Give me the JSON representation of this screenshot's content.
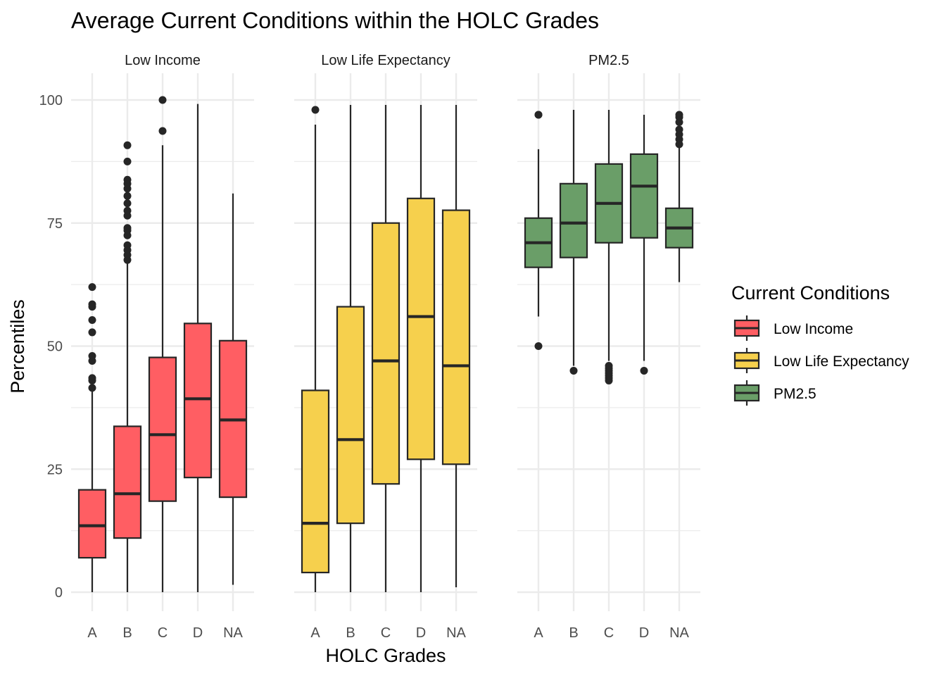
{
  "chart_data": {
    "type": "boxplot",
    "title": "Average Current Conditions within the HOLC Grades",
    "xlabel": "HOLC Grades",
    "ylabel": "Percentiles",
    "ylim": [
      -4,
      104
    ],
    "yticks": [
      0,
      25,
      50,
      75,
      100
    ],
    "categories": [
      "A",
      "B",
      "C",
      "D",
      "NA"
    ],
    "grid": true,
    "legend": {
      "title": "Current Conditions",
      "placement": "right",
      "entries": [
        "Low Income",
        "Low Life Expectancy",
        "PM2.5"
      ]
    },
    "panels": [
      {
        "name": "Low Income",
        "color": "#ff5e63",
        "boxes": [
          {
            "category": "A",
            "min": 0,
            "q1": 7,
            "median": 13.5,
            "q3": 20.8,
            "max": 41,
            "outliers": [
              41.5,
              43,
              43.5,
              47,
              48,
              52.8,
              55.3,
              58,
              58.5,
              62
            ]
          },
          {
            "category": "B",
            "min": 0,
            "q1": 11,
            "median": 20,
            "q3": 33.7,
            "max": 67,
            "outliers": [
              67.5,
              68.5,
              69.5,
              70.5,
              72.5,
              73.5,
              74,
              76.5,
              77.5,
              79,
              80.5,
              82,
              83,
              83.8,
              87.5,
              90.8
            ]
          },
          {
            "category": "C",
            "min": 0,
            "q1": 18.5,
            "median": 32,
            "q3": 47.7,
            "max": 90.8,
            "outliers": [
              93.7,
              100
            ]
          },
          {
            "category": "D",
            "min": 0,
            "q1": 23.3,
            "median": 39.3,
            "q3": 54.6,
            "max": 99.2,
            "outliers": []
          },
          {
            "category": "NA",
            "min": 1.5,
            "q1": 19.3,
            "median": 35,
            "q3": 51.1,
            "max": 81,
            "outliers": []
          }
        ]
      },
      {
        "name": "Low Life Expectancy",
        "color": "#f6d04d",
        "boxes": [
          {
            "category": "A",
            "min": 0,
            "q1": 4,
            "median": 14,
            "q3": 41,
            "max": 95,
            "outliers": [
              98
            ]
          },
          {
            "category": "B",
            "min": 0,
            "q1": 14,
            "median": 31,
            "q3": 58,
            "max": 99,
            "outliers": []
          },
          {
            "category": "C",
            "min": 0,
            "q1": 22,
            "median": 47,
            "q3": 75,
            "max": 99,
            "outliers": []
          },
          {
            "category": "D",
            "min": 0,
            "q1": 27,
            "median": 56,
            "q3": 80,
            "max": 99,
            "outliers": []
          },
          {
            "category": "NA",
            "min": 1,
            "q1": 26,
            "median": 46,
            "q3": 77.6,
            "max": 99,
            "outliers": []
          }
        ]
      },
      {
        "name": "PM2.5",
        "color": "#6a9e68",
        "boxes": [
          {
            "category": "A",
            "min": 56,
            "q1": 66,
            "median": 71,
            "q3": 76,
            "max": 90,
            "outliers": [
              50,
              97,
              97
            ]
          },
          {
            "category": "B",
            "min": 46,
            "q1": 68,
            "median": 75,
            "q3": 83,
            "max": 98,
            "outliers": [
              45
            ]
          },
          {
            "category": "C",
            "min": 47,
            "q1": 71,
            "median": 79,
            "q3": 87,
            "max": 98,
            "outliers": [
              43,
              43.5,
              44,
              44.5,
              45,
              45.5,
              46
            ]
          },
          {
            "category": "D",
            "min": 47,
            "q1": 72,
            "median": 82.5,
            "q3": 89,
            "max": 97,
            "outliers": [
              45
            ]
          },
          {
            "category": "NA",
            "min": 63,
            "q1": 70,
            "median": 74,
            "q3": 78,
            "max": 90.5,
            "outliers": [
              91,
              92,
              93,
              94,
              95.5,
              96.5,
              97
            ]
          }
        ]
      }
    ]
  }
}
